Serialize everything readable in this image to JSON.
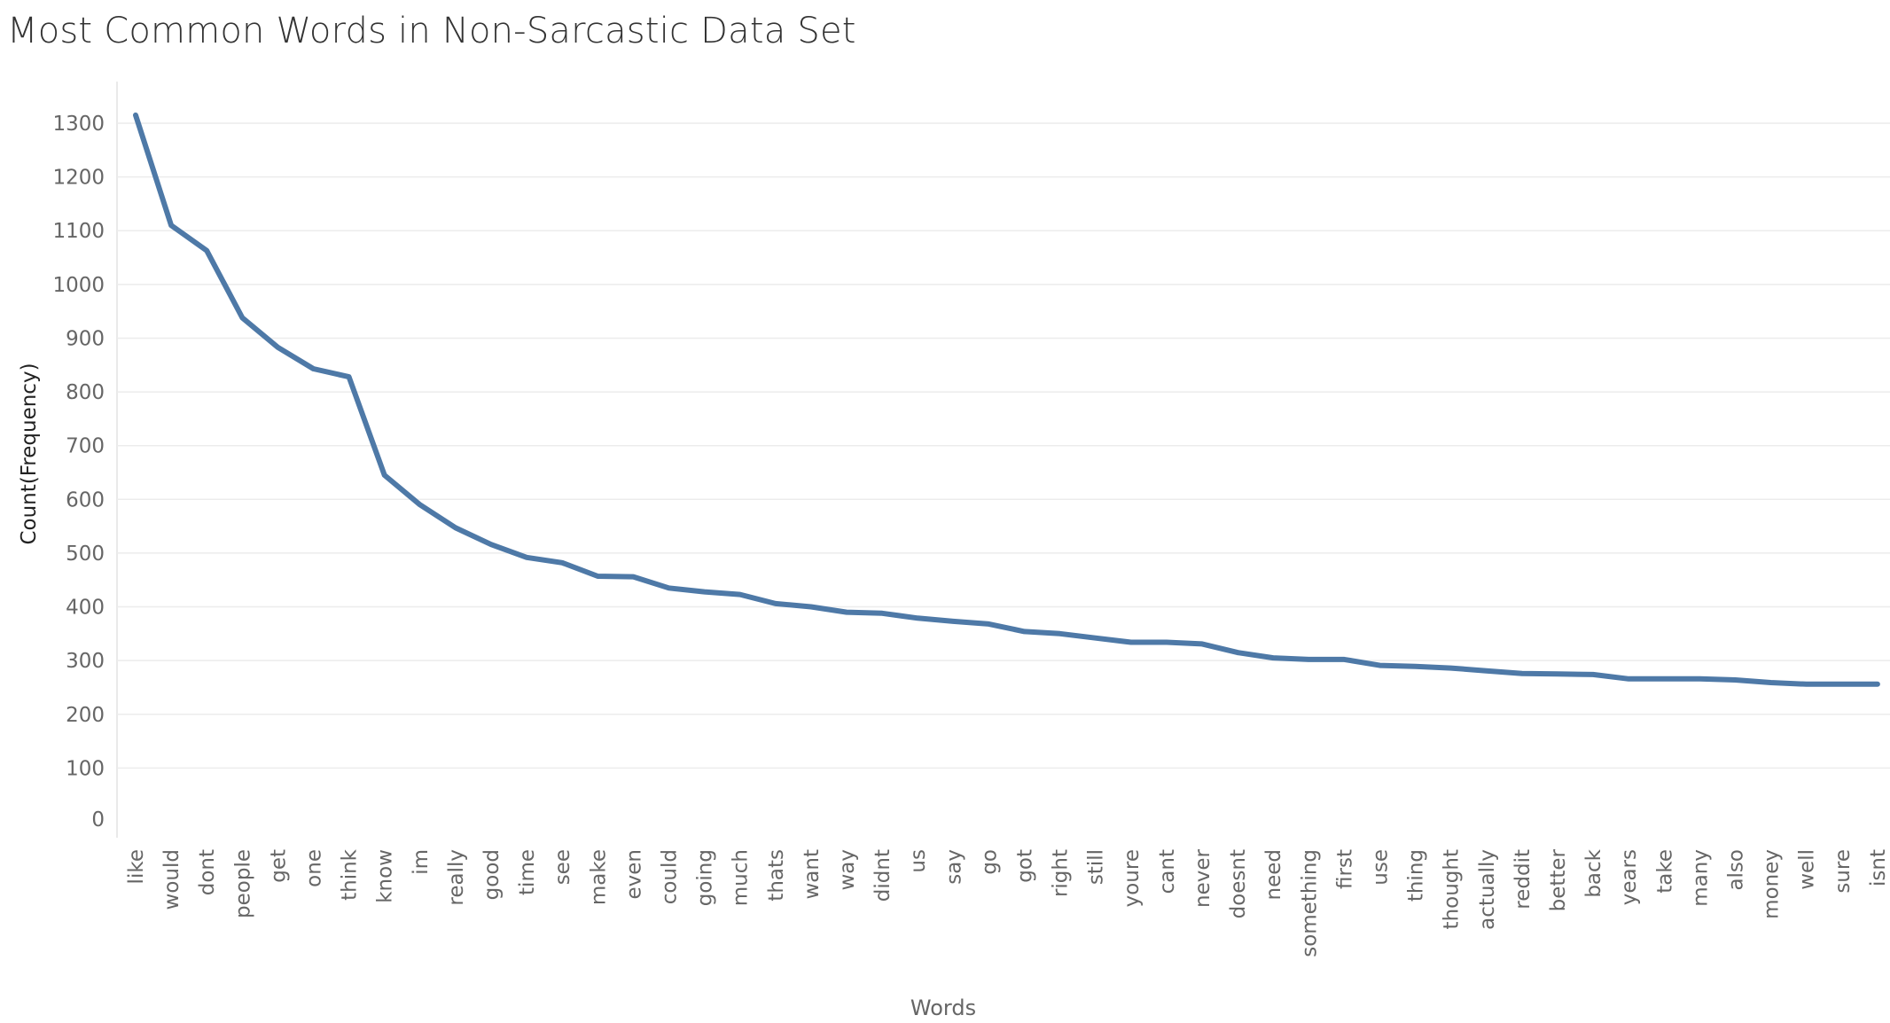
{
  "chart_data": {
    "type": "line",
    "title": "Most Common Words in Non-Sarcastic Data Set",
    "xlabel": "Words",
    "ylabel": "Count(Frequency)",
    "ylim": [
      0,
      1350
    ],
    "yticks": [
      0,
      100,
      200,
      300,
      400,
      500,
      600,
      700,
      800,
      900,
      1000,
      1100,
      1200,
      1300
    ],
    "grid": true,
    "color": "#4E79A7",
    "categories": [
      "like",
      "would",
      "dont",
      "people",
      "get",
      "one",
      "think",
      "know",
      "im",
      "really",
      "good",
      "time",
      "see",
      "make",
      "even",
      "could",
      "going",
      "much",
      "thats",
      "want",
      "way",
      "didnt",
      "us",
      "say",
      "go",
      "got",
      "right",
      "still",
      "youre",
      "cant",
      "never",
      "doesnt",
      "need",
      "something",
      "first",
      "use",
      "thing",
      "thought",
      "actually",
      "reddit",
      "better",
      "back",
      "years",
      "take",
      "many",
      "also",
      "money",
      "well",
      "sure",
      "isnt"
    ],
    "values": [
      1315,
      1110,
      1063,
      938,
      883,
      843,
      828,
      645,
      590,
      547,
      516,
      492,
      482,
      457,
      456,
      435,
      428,
      423,
      406,
      400,
      390,
      388,
      379,
      373,
      368,
      354,
      350,
      342,
      334,
      334,
      331,
      315,
      305,
      302,
      302,
      291,
      289,
      286,
      281,
      276,
      275,
      274,
      266,
      266,
      266,
      264,
      259,
      256,
      256,
      256
    ]
  }
}
